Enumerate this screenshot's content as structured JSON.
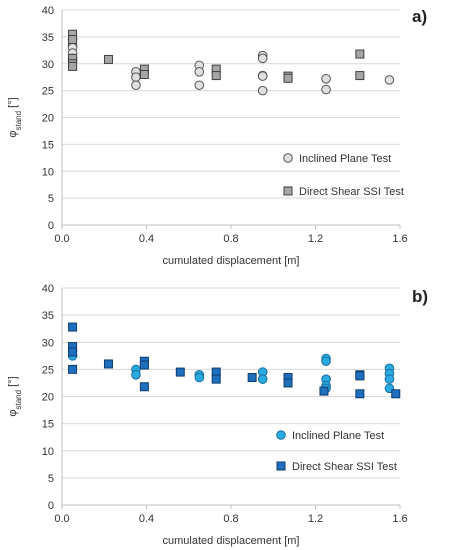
{
  "chart_data": [
    {
      "type": "scatter",
      "panel_label": "a)",
      "xlabel": "cumulated displacement [m]",
      "ylabel_main": "φ",
      "ylabel_sub": "stand",
      "ylabel_unit": " [°]",
      "xlim": [
        0,
        1.6
      ],
      "ylim": [
        0,
        40
      ],
      "xticks": [
        "0.0",
        "0.4",
        "0.8",
        "1.2",
        "1.6"
      ],
      "yticks": [
        "0",
        "5",
        "10",
        "15",
        "20",
        "25",
        "30",
        "35",
        "40"
      ],
      "grid": "horizontal",
      "legend_position": "bottom-right",
      "series": [
        {
          "name": "Inclined Plane Test",
          "marker": "circle",
          "color": "#e0e0e0",
          "stroke": "#555555",
          "points": [
            [
              0.05,
              34.5
            ],
            [
              0.05,
              33.5
            ],
            [
              0.05,
              33.0
            ],
            [
              0.05,
              32.0
            ],
            [
              0.05,
              31.0
            ],
            [
              0.05,
              30.5
            ],
            [
              0.35,
              28.5
            ],
            [
              0.35,
              27.5
            ],
            [
              0.35,
              26.0
            ],
            [
              0.65,
              29.7
            ],
            [
              0.65,
              28.5
            ],
            [
              0.65,
              26.0
            ],
            [
              0.95,
              31.5
            ],
            [
              0.95,
              31.0
            ],
            [
              0.95,
              27.8
            ],
            [
              0.95,
              27.7
            ],
            [
              0.95,
              25.0
            ],
            [
              1.25,
              27.2
            ],
            [
              1.25,
              25.2
            ],
            [
              1.55,
              27.0
            ]
          ]
        },
        {
          "name": "Direct Shear SSI Test",
          "marker": "square",
          "color": "#a6a6a6",
          "stroke": "#404040",
          "points": [
            [
              0.05,
              35.5
            ],
            [
              0.05,
              34.5
            ],
            [
              0.05,
              31.0
            ],
            [
              0.05,
              30.0
            ],
            [
              0.05,
              29.5
            ],
            [
              0.22,
              30.8
            ],
            [
              0.39,
              29.0
            ],
            [
              0.39,
              28.0
            ],
            [
              0.73,
              29.0
            ],
            [
              0.73,
              27.8
            ],
            [
              1.07,
              27.7
            ],
            [
              1.07,
              27.3
            ],
            [
              1.41,
              31.8
            ],
            [
              1.41,
              27.8
            ]
          ]
        }
      ]
    },
    {
      "type": "scatter",
      "panel_label": "b)",
      "xlabel": "cumulated displacement [m]",
      "ylabel_main": "φ",
      "ylabel_sub": "stand",
      "ylabel_unit": " [°]",
      "xlim": [
        0,
        1.6
      ],
      "ylim": [
        0,
        40
      ],
      "xticks": [
        "0.0",
        "0.4",
        "0.8",
        "1.2",
        "1.6"
      ],
      "yticks": [
        "0",
        "5",
        "10",
        "15",
        "20",
        "25",
        "30",
        "35",
        "40"
      ],
      "grid": "horizontal",
      "legend_position": "bottom-right",
      "series": [
        {
          "name": "Inclined Plane Test",
          "marker": "circle",
          "color": "#29abe2",
          "stroke": "#1a6fa0",
          "points": [
            [
              0.05,
              28.5
            ],
            [
              0.05,
              27.5
            ],
            [
              0.35,
              25.0
            ],
            [
              0.35,
              24.0
            ],
            [
              0.65,
              24.0
            ],
            [
              0.65,
              23.5
            ],
            [
              0.95,
              24.5
            ],
            [
              0.95,
              23.2
            ],
            [
              1.25,
              27.0
            ],
            [
              1.25,
              26.5
            ],
            [
              1.25,
              23.2
            ],
            [
              1.25,
              22.0
            ],
            [
              1.25,
              21.5
            ],
            [
              1.55,
              25.2
            ],
            [
              1.55,
              24.2
            ],
            [
              1.55,
              23.2
            ],
            [
              1.55,
              21.5
            ]
          ]
        },
        {
          "name": "Direct Shear SSI Test",
          "marker": "square",
          "color": "#1f6fbf",
          "stroke": "#0d3d6e",
          "points": [
            [
              0.05,
              32.8
            ],
            [
              0.05,
              29.2
            ],
            [
              0.05,
              28.2
            ],
            [
              0.05,
              25.0
            ],
            [
              0.22,
              26.0
            ],
            [
              0.39,
              26.5
            ],
            [
              0.39,
              25.8
            ],
            [
              0.39,
              21.8
            ],
            [
              0.56,
              24.5
            ],
            [
              0.73,
              24.5
            ],
            [
              0.73,
              23.2
            ],
            [
              0.9,
              23.5
            ],
            [
              1.07,
              23.5
            ],
            [
              1.07,
              22.5
            ],
            [
              1.24,
              21.0
            ],
            [
              1.41,
              24.0
            ],
            [
              1.41,
              23.8
            ],
            [
              1.41,
              20.5
            ],
            [
              1.58,
              20.5
            ]
          ]
        }
      ]
    }
  ]
}
